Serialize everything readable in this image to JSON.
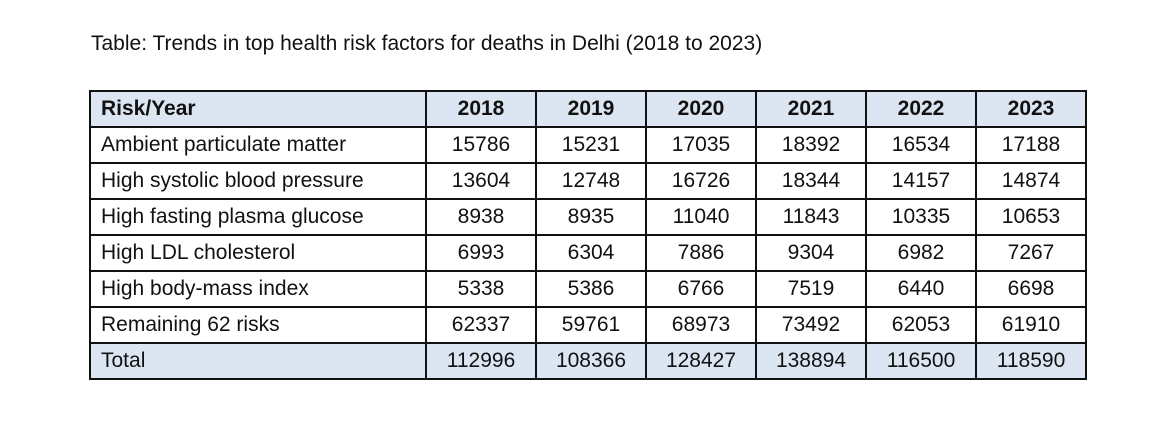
{
  "caption": "Table: Trends in top health risk factors for deaths in Delhi (2018 to 2023)",
  "header": [
    "Risk/Year",
    "2018",
    "2019",
    "2020",
    "2021",
    "2022",
    "2023"
  ],
  "rows": [
    [
      "Ambient particulate matter",
      "15786",
      "15231",
      "17035",
      "18392",
      "16534",
      "17188"
    ],
    [
      "High systolic blood pressure",
      "13604",
      "12748",
      "16726",
      "18344",
      "14157",
      "14874"
    ],
    [
      "High fasting plasma glucose",
      "8938",
      "8935",
      "11040",
      "11843",
      "10335",
      "10653"
    ],
    [
      "High LDL cholesterol",
      "6993",
      "6304",
      "7886",
      "9304",
      "6982",
      "7267"
    ],
    [
      "High body-mass index",
      "5338",
      "5386",
      "6766",
      "7519",
      "6440",
      "6698"
    ],
    [
      "Remaining 62 risks",
      "62337",
      "59761",
      "68973",
      "73492",
      "62053",
      "61910"
    ],
    [
      "Total",
      "112996",
      "108366",
      "128427",
      "138894",
      "116500",
      "118590"
    ]
  ],
  "colors": {
    "header_bg": "#dce6f2",
    "total_bg": "#dce6f2"
  }
}
